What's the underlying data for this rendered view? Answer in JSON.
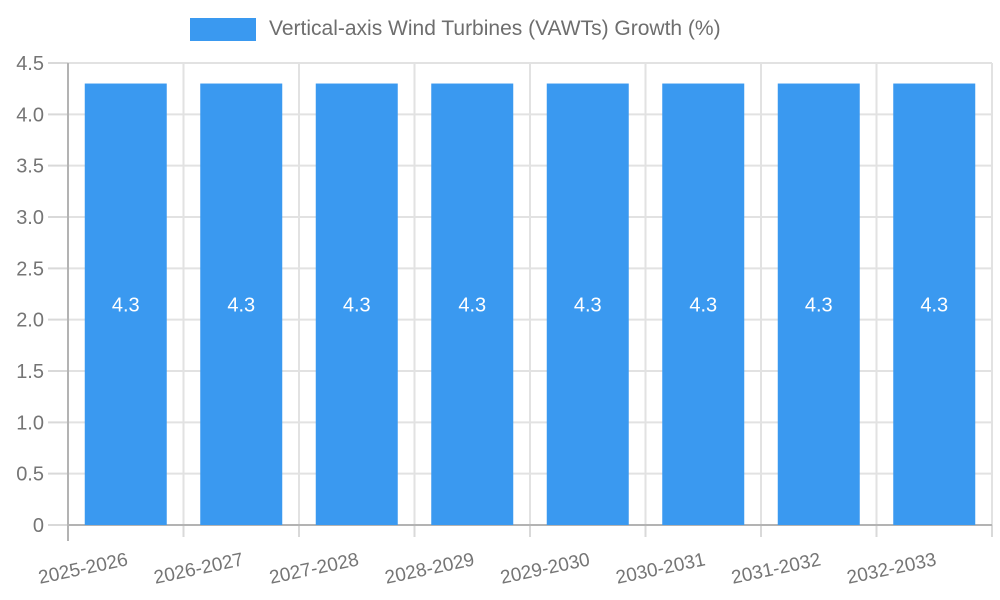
{
  "legend": {
    "title": "Vertical-axis Wind Turbines (VAWTs) Growth (%)",
    "swatch_color": "#3a99f0"
  },
  "chart_data": {
    "type": "bar",
    "title": "Vertical-axis Wind Turbines (VAWTs) Growth (%)",
    "categories": [
      "2025-2026",
      "2026-2027",
      "2027-2028",
      "2028-2029",
      "2029-2030",
      "2030-2031",
      "2031-2032",
      "2032-2033"
    ],
    "values": [
      4.3,
      4.3,
      4.3,
      4.3,
      4.3,
      4.3,
      4.3,
      4.3
    ],
    "bar_labels": [
      "4.3",
      "4.3",
      "4.3",
      "4.3",
      "4.3",
      "4.3",
      "4.3",
      "4.3"
    ],
    "xlabel": "",
    "ylabel": "",
    "ylim": [
      0,
      4.5
    ],
    "ytick_step": 0.5,
    "ytick_labels": [
      "0",
      "0.5",
      "1.0",
      "1.5",
      "2.0",
      "2.5",
      "3.0",
      "3.5",
      "4.0",
      "4.5"
    ],
    "grid": true,
    "legend_position": "top",
    "x_label_rotation_deg": -12,
    "colors": {
      "bar": "#3a99f0",
      "bar_value_label": "#ffffff",
      "grid_line": "#e2e2e2",
      "tick_line": "#d9d9d9",
      "axis_line": "#b3b3b3",
      "axis_label": "#757575",
      "legend_text": "#6e6e6e",
      "background": "#ffffff"
    }
  }
}
